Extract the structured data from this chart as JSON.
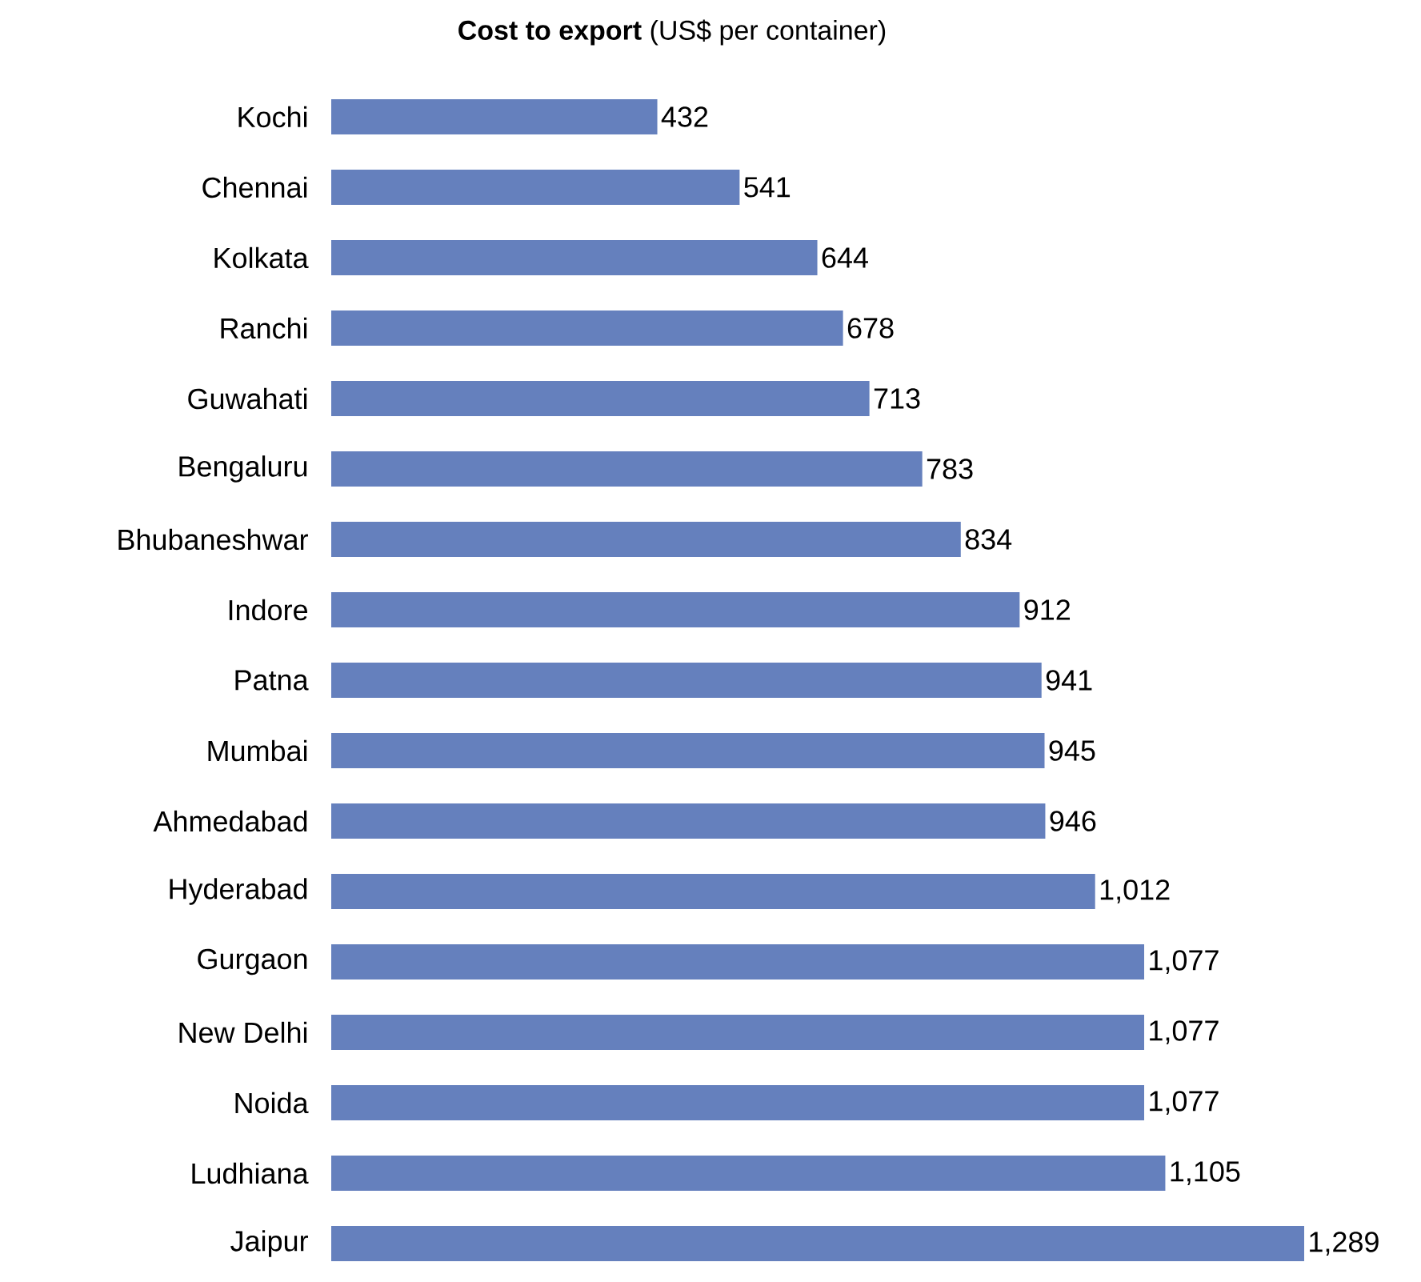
{
  "chart_data": {
    "type": "bar",
    "orientation": "horizontal",
    "title": "**Cost to export** (US$ per container)",
    "categories": [
      "Kochi",
      "Chennai",
      "Kolkata",
      "Ranchi",
      "Guwahati",
      "Bengaluru",
      "Bhubaneshwar",
      "Indore",
      "Patna",
      "Mumbai",
      "Ahmedabad",
      "Hyderabad",
      "Gurgaon",
      "New Delhi",
      "Noida",
      "Ludhiana",
      "Jaipur"
    ],
    "values": [
      432,
      541,
      644,
      678,
      713,
      783,
      834,
      912,
      941,
      945,
      946,
      1012,
      1077,
      1077,
      1077,
      1105,
      1289
    ],
    "value_labels": [
      "432",
      "541",
      "644",
      "678",
      "713",
      "783",
      "834",
      "912",
      "941",
      "945",
      "946",
      "1,012",
      "1,077",
      "1,077",
      "1,077",
      "1,105",
      "1,289"
    ],
    "color": "#6580bd"
  }
}
